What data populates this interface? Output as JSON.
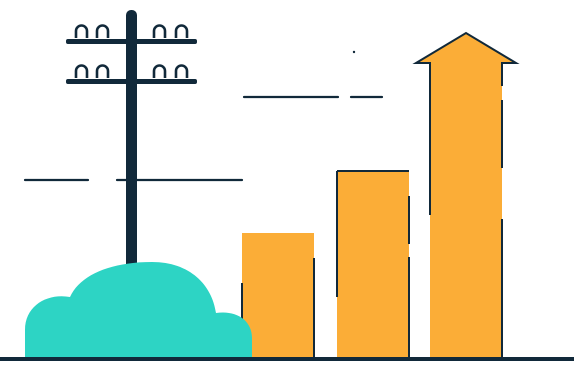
{
  "illustration": {
    "colors": {
      "navy": "#11293a",
      "orange": "#fbad37",
      "teal": "#2dd4c4",
      "background": "#ffffff"
    },
    "growth_bars": {
      "count": 3,
      "trend": "increasing",
      "tallest_has_arrow": true
    }
  }
}
